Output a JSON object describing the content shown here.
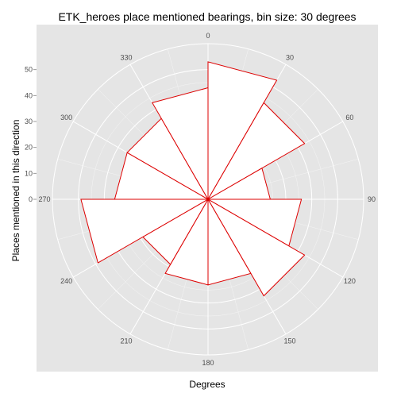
{
  "chart_data": {
    "type": "rose",
    "title": "ETK_heroes place mentioned bearings, bin size: 30 degrees",
    "xlabel": "Degrees",
    "ylabel": "Places mentioned in this direction",
    "bin_size_degrees": 30,
    "bins": [
      {
        "start": 0,
        "end": 30,
        "value": 53
      },
      {
        "start": 30,
        "end": 60,
        "value": 43
      },
      {
        "start": 60,
        "end": 90,
        "value": 24
      },
      {
        "start": 90,
        "end": 120,
        "value": 36
      },
      {
        "start": 120,
        "end": 150,
        "value": 43
      },
      {
        "start": 150,
        "end": 180,
        "value": 33
      },
      {
        "start": 180,
        "end": 210,
        "value": 33
      },
      {
        "start": 210,
        "end": 240,
        "value": 29
      },
      {
        "start": 240,
        "end": 270,
        "value": 49
      },
      {
        "start": 270,
        "end": 300,
        "value": 36
      },
      {
        "start": 300,
        "end": 330,
        "value": 36
      },
      {
        "start": 330,
        "end": 360,
        "value": 43
      }
    ],
    "radial_ticks": [
      0,
      10,
      20,
      30,
      40,
      50
    ],
    "angle_ticks": [
      0,
      30,
      60,
      90,
      120,
      150,
      180,
      210,
      240,
      270,
      300,
      330
    ],
    "angle_tick_labels": [
      "0",
      "30",
      "60",
      "90",
      "120",
      "150",
      "180",
      "210",
      "240",
      "270",
      "300",
      "330"
    ],
    "radial_tick_labels": [
      "0",
      "10",
      "20",
      "30",
      "40",
      "50"
    ],
    "rmax": 60,
    "grid": true,
    "panel_color": "#e5e5e5",
    "grid_color": "#ffffff",
    "bar_fill": "#ffffff",
    "bar_stroke": "#dd0000",
    "text_color": "#4d4d4d"
  }
}
